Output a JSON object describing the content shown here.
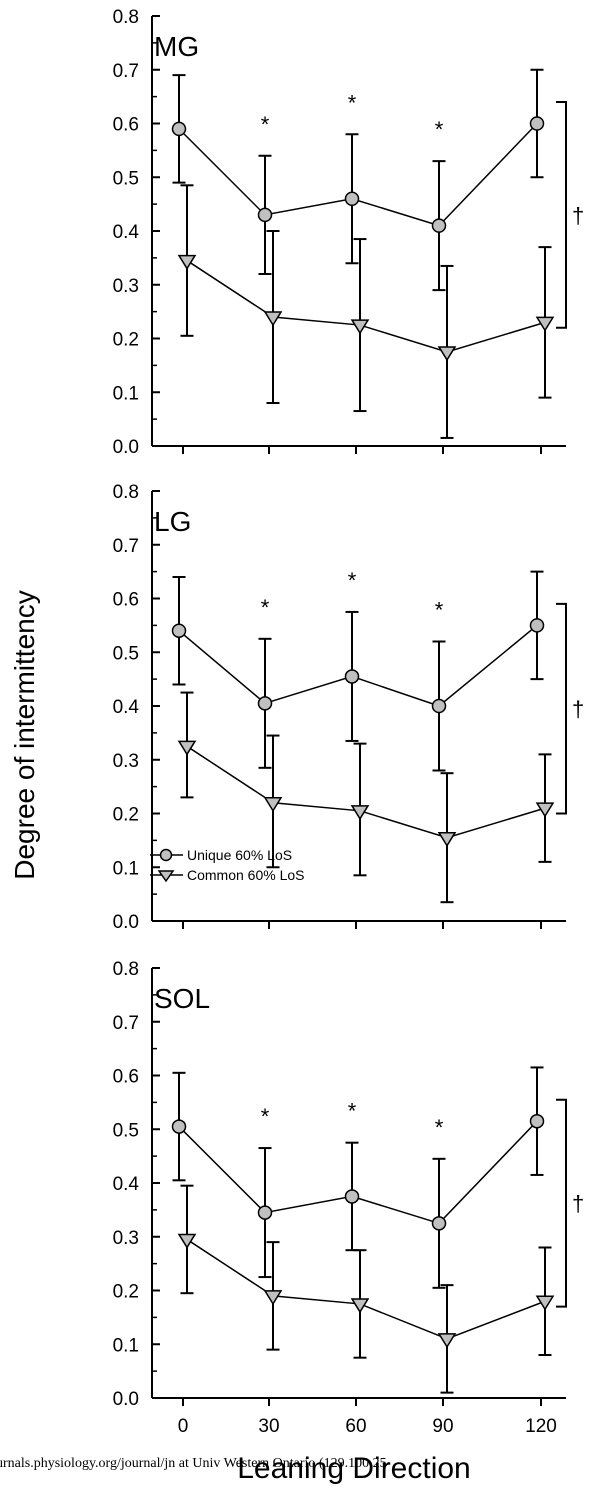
{
  "y_axis_label": "Degree of intermittency",
  "x_axis_label": "Leaning Direction",
  "footer_text": "urnals.physiology.org/journal/jn at Univ Western Ontario (129.100.25",
  "legend": [
    "Unique 60% LoS",
    "Common 60% LoS"
  ],
  "colors": {
    "marker_fill": "#c0c0c0",
    "line": "#000000"
  },
  "chart_data": [
    {
      "type": "line",
      "panel_label": "MG",
      "x": [
        0,
        30,
        60,
        90,
        120
      ],
      "x_tick_labels": [
        "0",
        "30",
        "60",
        "90",
        "120"
      ],
      "ylim": [
        0,
        0.8
      ],
      "y_tick_labels": [
        "0.0",
        "0.1",
        "0.2",
        "0.3",
        "0.4",
        "0.5",
        "0.6",
        "0.7",
        "0.8"
      ],
      "series": [
        {
          "name": "Unique 60% LoS",
          "marker": "circle",
          "values": [
            0.59,
            0.43,
            0.46,
            0.41,
            0.6
          ],
          "err_low": [
            0.49,
            0.32,
            0.34,
            0.29,
            0.5
          ],
          "err_high": [
            0.69,
            0.54,
            0.58,
            0.53,
            0.7
          ]
        },
        {
          "name": "Common 60% LoS",
          "marker": "triangle-down",
          "values": [
            0.345,
            0.24,
            0.225,
            0.175,
            0.23
          ],
          "err_low": [
            0.205,
            0.08,
            0.065,
            0.015,
            0.09
          ],
          "err_high": [
            0.485,
            0.4,
            0.385,
            0.335,
            0.37
          ]
        }
      ],
      "annotations": {
        "stars": [
          30,
          60,
          90
        ],
        "star_text": "*",
        "dagger_text": "†"
      }
    },
    {
      "type": "line",
      "panel_label": "LG",
      "x": [
        0,
        30,
        60,
        90,
        120
      ],
      "x_tick_labels": [
        "0",
        "30",
        "60",
        "90",
        "120"
      ],
      "ylim": [
        0,
        0.8
      ],
      "y_tick_labels": [
        "0.0",
        "0.1",
        "0.2",
        "0.3",
        "0.4",
        "0.5",
        "0.6",
        "0.7",
        "0.8"
      ],
      "series": [
        {
          "name": "Unique 60% LoS",
          "marker": "circle",
          "values": [
            0.54,
            0.405,
            0.455,
            0.4,
            0.55
          ],
          "err_low": [
            0.44,
            0.285,
            0.335,
            0.28,
            0.45
          ],
          "err_high": [
            0.64,
            0.525,
            0.575,
            0.52,
            0.65
          ]
        },
        {
          "name": "Common 60% LoS",
          "marker": "triangle-down",
          "values": [
            0.325,
            0.22,
            0.205,
            0.155,
            0.21
          ],
          "err_low": [
            0.23,
            0.1,
            0.085,
            0.035,
            0.11
          ],
          "err_high": [
            0.425,
            0.345,
            0.33,
            0.275,
            0.31
          ]
        }
      ],
      "annotations": {
        "stars": [
          30,
          60,
          90
        ],
        "star_text": "*",
        "dagger_text": "†"
      }
    },
    {
      "type": "line",
      "panel_label": "SOL",
      "x": [
        0,
        30,
        60,
        90,
        120
      ],
      "x_tick_labels": [
        "0",
        "30",
        "60",
        "90",
        "120"
      ],
      "ylim": [
        0,
        0.8
      ],
      "y_tick_labels": [
        "0.0",
        "0.1",
        "0.2",
        "0.3",
        "0.4",
        "0.5",
        "0.6",
        "0.7",
        "0.8"
      ],
      "series": [
        {
          "name": "Unique 60% LoS",
          "marker": "circle",
          "values": [
            0.505,
            0.345,
            0.375,
            0.325,
            0.515
          ],
          "err_low": [
            0.405,
            0.225,
            0.275,
            0.205,
            0.415
          ],
          "err_high": [
            0.605,
            0.465,
            0.475,
            0.445,
            0.615
          ]
        },
        {
          "name": "Common 60% LoS",
          "marker": "triangle-down",
          "values": [
            0.295,
            0.19,
            0.175,
            0.11,
            0.18
          ],
          "err_low": [
            0.195,
            0.09,
            0.075,
            0.01,
            0.08
          ],
          "err_high": [
            0.395,
            0.29,
            0.275,
            0.21,
            0.28
          ]
        }
      ],
      "annotations": {
        "stars": [
          30,
          60,
          90
        ],
        "star_text": "*",
        "dagger_text": "†"
      }
    }
  ]
}
